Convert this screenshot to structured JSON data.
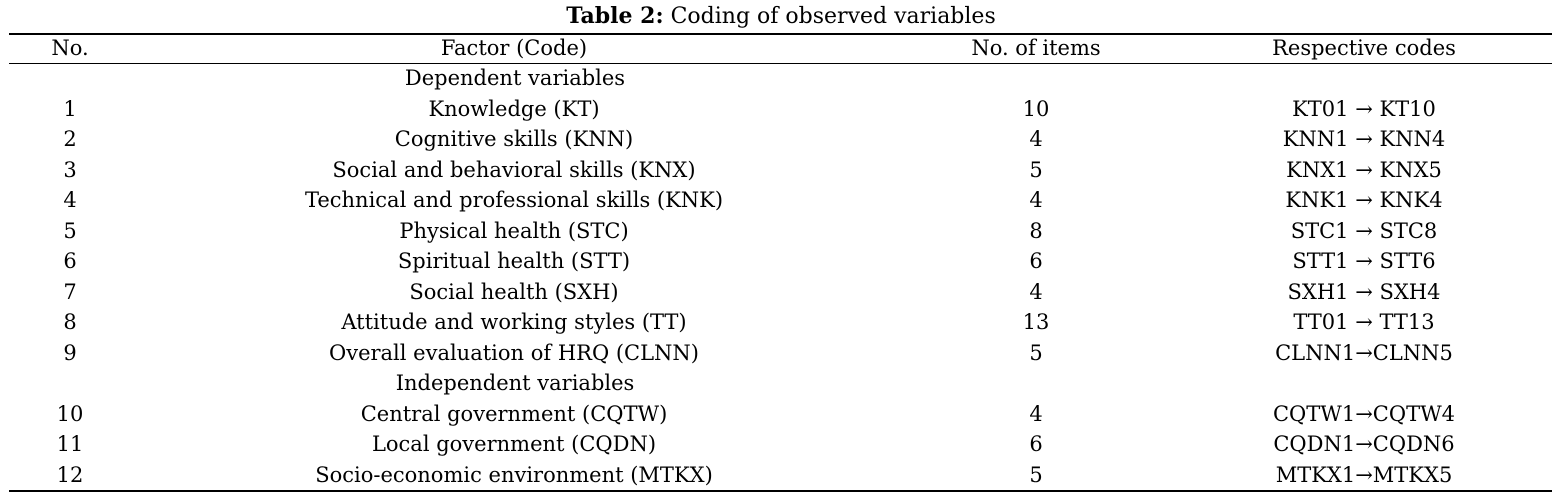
{
  "caption": {
    "label": "Table 2:",
    "title": "Coding of observed variables"
  },
  "header": {
    "no": "No.",
    "factor": "Factor (Code)",
    "items": "No. of items",
    "codes": "Respective codes"
  },
  "sections": [
    {
      "title": "Dependent variables",
      "rows": [
        {
          "no": "1",
          "factor": "Knowledge (KT)",
          "items": "10",
          "codes": "KT01 → KT10"
        },
        {
          "no": "2",
          "factor": "Cognitive skills (KNN)",
          "items": "4",
          "codes": "KNN1 → KNN4"
        },
        {
          "no": "3",
          "factor": "Social and behavioral skills (KNX)",
          "items": "5",
          "codes": "KNX1 → KNX5"
        },
        {
          "no": "4",
          "factor": "Technical and professional skills (KNK)",
          "items": "4",
          "codes": "KNK1 → KNK4"
        },
        {
          "no": "5",
          "factor": "Physical health (STC)",
          "items": "8",
          "codes": "STC1 → STC8"
        },
        {
          "no": "6",
          "factor": "Spiritual health (STT)",
          "items": "6",
          "codes": "STT1 → STT6"
        },
        {
          "no": "7",
          "factor": "Social health (SXH)",
          "items": "4",
          "codes": "SXH1 → SXH4"
        },
        {
          "no": "8",
          "factor": "Attitude and working styles (TT)",
          "items": "13",
          "codes": "TT01 → TT13"
        },
        {
          "no": "9",
          "factor": "Overall evaluation of HRQ (CLNN)",
          "items": "5",
          "codes": "CLNN1→CLNN5"
        }
      ]
    },
    {
      "title": "Independent variables",
      "rows": [
        {
          "no": "10",
          "factor": "Central government (CQTW)",
          "items": "4",
          "codes": "CQTW1→CQTW4"
        },
        {
          "no": "11",
          "factor": "Local government (CQDN)",
          "items": "6",
          "codes": "CQDN1→CQDN6"
        },
        {
          "no": "12",
          "factor": "Socio-economic environment (MTKX)",
          "items": "5",
          "codes": "MTKX1→MTKX5"
        }
      ]
    }
  ]
}
